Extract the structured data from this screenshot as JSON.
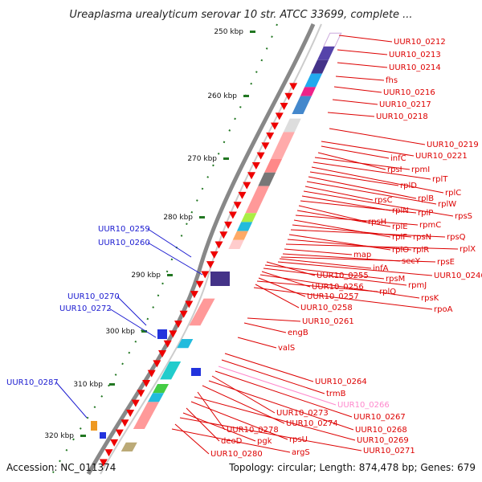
{
  "title": "Ureaplasma urealyticum serovar 10 str. ATCC 33699, complete ...",
  "footer": {
    "accession": "Accession: NC_011374",
    "summary": "Topology: circular; Length: 874,478 bp; Genes: 679"
  },
  "colors": {
    "forward_gene": "#2222dd",
    "reverse_gene": "#ee0000",
    "tick": "#227722",
    "highlight": "#ff88cc",
    "backbone": "#888888"
  },
  "ticks": [
    {
      "label": "250 kbp"
    },
    {
      "label": "260 kbp"
    },
    {
      "label": "270 kbp"
    },
    {
      "label": "280 kbp"
    },
    {
      "label": "290 kbp"
    },
    {
      "label": "300 kbp"
    },
    {
      "label": "310 kbp"
    },
    {
      "label": "320 kbp"
    }
  ],
  "labels_left": [
    {
      "text": "UUR10_0259",
      "color": "#1a1ad0"
    },
    {
      "text": "UUR10_0260",
      "color": "#1a1ad0"
    },
    {
      "text": "UUR10_0270",
      "color": "#1a1ad0"
    },
    {
      "text": "UUR10_0272",
      "color": "#1a1ad0"
    },
    {
      "text": "UUR10_0287",
      "color": "#1a1ad0"
    }
  ],
  "labels_right": [
    {
      "text": "UUR10_0212",
      "color": "#dd0000"
    },
    {
      "text": "UUR10_0213",
      "color": "#dd0000"
    },
    {
      "text": "UUR10_0214",
      "color": "#dd0000"
    },
    {
      "text": "fhs",
      "color": "#dd0000"
    },
    {
      "text": "UUR10_0216",
      "color": "#dd0000"
    },
    {
      "text": "UUR10_0217",
      "color": "#dd0000"
    },
    {
      "text": "UUR10_0218",
      "color": "#dd0000"
    },
    {
      "text": "UUR10_0219",
      "color": "#dd0000"
    },
    {
      "text": "UUR10_0221",
      "color": "#dd0000"
    },
    {
      "text": "infC",
      "color": "#dd0000"
    },
    {
      "text": "rpsI",
      "color": "#dd0000"
    },
    {
      "text": "rpmI",
      "color": "#dd0000"
    },
    {
      "text": "rplT",
      "color": "#dd0000"
    },
    {
      "text": "rplC",
      "color": "#dd0000"
    },
    {
      "text": "rplD",
      "color": "#dd0000"
    },
    {
      "text": "rplB",
      "color": "#dd0000"
    },
    {
      "text": "rplW",
      "color": "#dd0000"
    },
    {
      "text": "rpsC",
      "color": "#dd0000"
    },
    {
      "text": "rpsS",
      "color": "#dd0000"
    },
    {
      "text": "rplN",
      "color": "#dd0000"
    },
    {
      "text": "rplP",
      "color": "#dd0000"
    },
    {
      "text": "rpsH",
      "color": "#dd0000"
    },
    {
      "text": "rplE",
      "color": "#dd0000"
    },
    {
      "text": "rpmC",
      "color": "#dd0000"
    },
    {
      "text": "rplF",
      "color": "#dd0000"
    },
    {
      "text": "rpsN",
      "color": "#dd0000"
    },
    {
      "text": "rpsQ",
      "color": "#dd0000"
    },
    {
      "text": "rplO",
      "color": "#dd0000"
    },
    {
      "text": "rplR",
      "color": "#dd0000"
    },
    {
      "text": "rplX",
      "color": "#dd0000"
    },
    {
      "text": "map",
      "color": "#dd0000"
    },
    {
      "text": "secY",
      "color": "#dd0000"
    },
    {
      "text": "rpsE",
      "color": "#dd0000"
    },
    {
      "text": "infA",
      "color": "#dd0000"
    },
    {
      "text": "UUR10_0246",
      "color": "#dd0000"
    },
    {
      "text": "UUR10_0255",
      "color": "#dd0000"
    },
    {
      "text": "rpsM",
      "color": "#dd0000"
    },
    {
      "text": "rpmJ",
      "color": "#dd0000"
    },
    {
      "text": "UUR10_0256",
      "color": "#dd0000"
    },
    {
      "text": "rpsK",
      "color": "#dd0000"
    },
    {
      "text": "UUR10_0257",
      "color": "#dd0000"
    },
    {
      "text": "rplQ",
      "color": "#dd0000"
    },
    {
      "text": "UUR10_0258",
      "color": "#dd0000"
    },
    {
      "text": "rpoA",
      "color": "#dd0000"
    },
    {
      "text": "UUR10_0261",
      "color": "#dd0000"
    },
    {
      "text": "engB",
      "color": "#dd0000"
    },
    {
      "text": "valS",
      "color": "#dd0000"
    },
    {
      "text": "UUR10_0264",
      "color": "#dd0000"
    },
    {
      "text": "trmB",
      "color": "#dd0000"
    },
    {
      "text": "UUR10_0266",
      "color": "#ff88cc"
    },
    {
      "text": "UUR10_0267",
      "color": "#dd0000"
    },
    {
      "text": "UUR10_0273",
      "color": "#dd0000"
    },
    {
      "text": "UUR10_0268",
      "color": "#dd0000"
    },
    {
      "text": "UUR10_0274",
      "color": "#dd0000"
    },
    {
      "text": "UUR10_0278",
      "color": "#dd0000"
    },
    {
      "text": "UUR10_0269",
      "color": "#dd0000"
    },
    {
      "text": "rpsU",
      "color": "#dd0000"
    },
    {
      "text": "deoD",
      "color": "#dd0000"
    },
    {
      "text": "pgk",
      "color": "#dd0000"
    },
    {
      "text": "UUR10_0271",
      "color": "#dd0000"
    },
    {
      "text": "UUR10_0280",
      "color": "#dd0000"
    },
    {
      "text": "argS",
      "color": "#dd0000"
    }
  ]
}
